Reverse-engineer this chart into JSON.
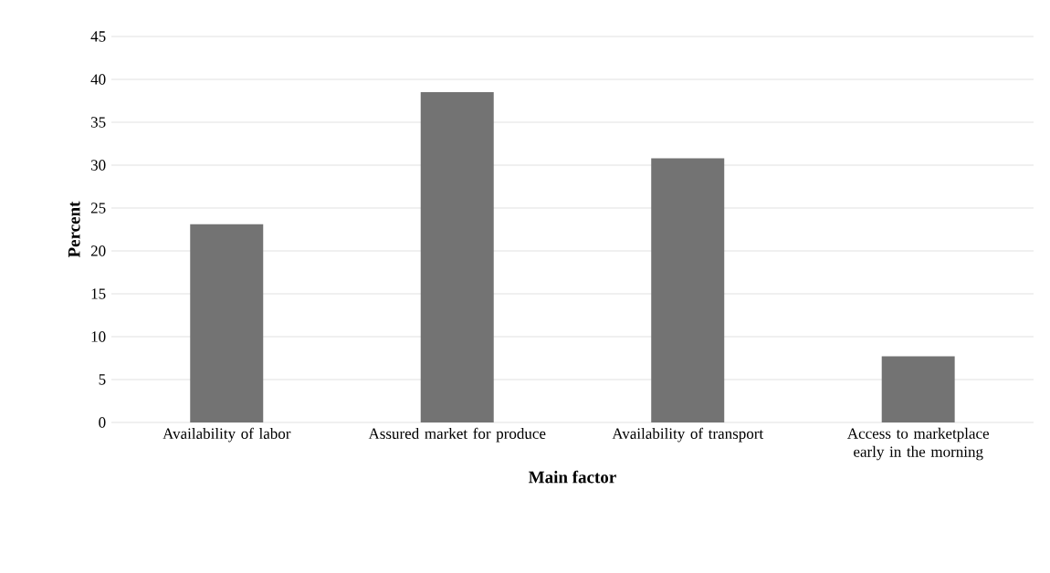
{
  "chart_data": {
    "type": "bar",
    "xlabel": "Main factor",
    "ylabel": "Percent",
    "categories": [
      "Availability of labor",
      "Assured market for produce",
      "Availability of transport",
      "Access to marketplace early in the morning"
    ],
    "values": [
      23.1,
      38.5,
      30.8,
      7.7
    ],
    "color": "#737373",
    "ylim": [
      0,
      45
    ],
    "yticks": [
      0,
      5,
      10,
      15,
      20,
      25,
      30,
      35,
      40,
      45
    ],
    "grid": "y"
  }
}
